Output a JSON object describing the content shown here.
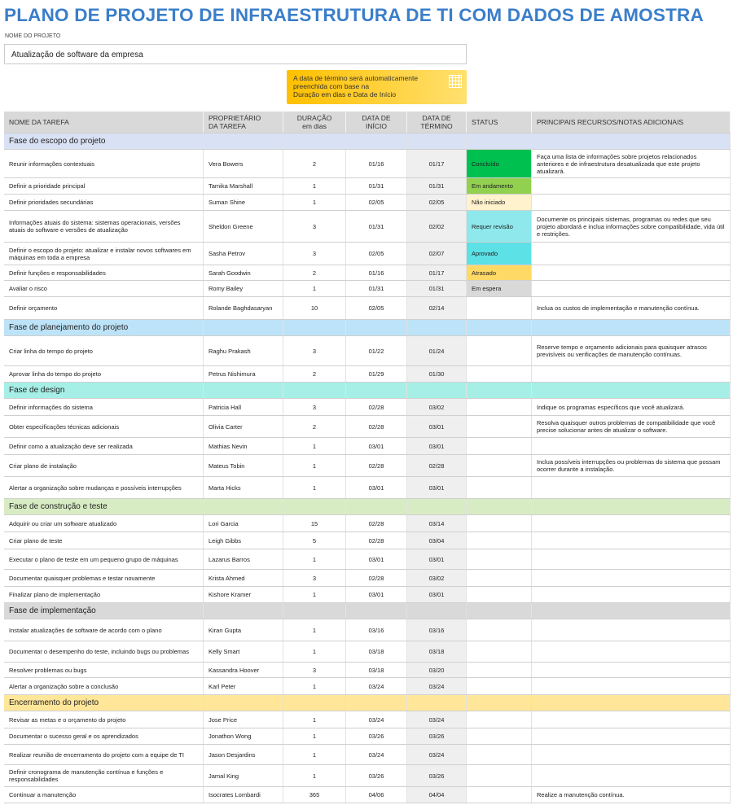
{
  "header": {
    "title": "PLANO DE PROJETO DE INFRAESTRUTURA DE TI COM DADOS DE AMOSTRA",
    "project_label": "NOME DO PROJETO",
    "project_name": "Atualização de software da empresa"
  },
  "note": {
    "lines": [
      "A data de término será automaticamente",
      "preenchida com base na",
      "Duração em dias e Data de Início"
    ]
  },
  "table": {
    "headers": [
      [
        "NOME DA TAREFA"
      ],
      [
        "PROPRIETÁRIO",
        "DA TAREFA"
      ],
      [
        "DURAÇÃO",
        "em dias"
      ],
      [
        "DATA DE",
        "INÍCIO"
      ],
      [
        "DATA DE",
        "TÉRMINO"
      ],
      [
        "STATUS"
      ],
      [
        "PRINCIPAIS RECURSOS/NOTAS ADICIONAIS"
      ]
    ],
    "phases": [
      {
        "name": "Fase do escopo do projeto",
        "color": "#d9e1f4",
        "rows": [
          {
            "task": "Reunir informações contextuais",
            "owner": "Vera Bowers",
            "duration": "2",
            "start": "01/16",
            "end": "01/17",
            "status": "Concluído",
            "status_color": "#00c050",
            "notes": "Faça uma lista de informações sobre projetos relacionados anteriores e de infraestrutura desatualizada que este projeto atualizará."
          },
          {
            "task": "Definir a prioridade principal",
            "owner": "Tamika Marshall",
            "duration": "1",
            "start": "01/31",
            "end": "01/31",
            "status": "Em andamento",
            "status_color": "#92d050"
          },
          {
            "task": "Definir prioridades secundárias",
            "owner": "Suman Shine",
            "duration": "1",
            "start": "02/05",
            "end": "02/05",
            "status": "Não iniciado",
            "status_color": "#fff2cc"
          },
          {
            "task": "Informações atuais do sistema: sistemas operacionais, versões atuais do software e versões de atualização",
            "owner": "Sheldon Greene",
            "duration": "3",
            "start": "01/31",
            "end": "02/02",
            "status": "Requer revisão",
            "status_color": "#8ee8ec",
            "notes": "Documente os principais sistemas, programas ou redes que seu projeto abordará e inclua informações sobre compatibilidade, vida útil e restrições."
          },
          {
            "task": "Definir o escopo do projeto: atualizar e instalar novos softwares em máquinas em toda a empresa",
            "owner": "Sasha Petrov",
            "duration": "3",
            "start": "02/05",
            "end": "02/07",
            "status": "Aprovado",
            "status_color": "#5ce1e6"
          },
          {
            "task": "Definir funções e responsabilidades",
            "owner": "Sarah Goodwin",
            "duration": "2",
            "start": "01/16",
            "end": "01/17",
            "status": "Atrasado",
            "status_color": "#ffd966"
          },
          {
            "task": "Avaliar o risco",
            "owner": "Romy Bailey",
            "duration": "1",
            "start": "01/31",
            "end": "01/31",
            "status": "Em espera",
            "status_color": "#d9d9d9"
          },
          {
            "task": "Definir orçamento",
            "owner": "Rolande Baghdasaryan",
            "duration": "10",
            "start": "02/05",
            "end": "02/14",
            "notes": "Inclua os custos de implementação e manutenção contínua."
          }
        ]
      },
      {
        "name": "Fase de planejamento do projeto",
        "color": "#bde3f8",
        "rows": [
          {
            "task": "Criar linha do tempo do projeto",
            "owner": "Raghu Prakash",
            "duration": "3",
            "start": "01/22",
            "end": "01/24",
            "notes": "Reserve tempo e orçamento adicionais para quaisquer atrasos previsíveis ou verificações de manutenção contínuas."
          },
          {
            "task": "Aprovar linha do tempo do projeto",
            "owner": "Petrus Nishimura",
            "duration": "2",
            "start": "01/29",
            "end": "01/30"
          }
        ]
      },
      {
        "name": "Fase de design",
        "color": "#a6efe6",
        "rows": [
          {
            "task": "Definir informações do sistema",
            "owner": "Patricia Hall",
            "duration": "3",
            "start": "02/28",
            "end": "03/02",
            "notes": "Indique os programas específicos que você atualizará."
          },
          {
            "task": "Obter especificações técnicas adicionais",
            "owner": "Olivia Carter",
            "duration": "2",
            "start": "02/28",
            "end": "03/01",
            "notes": "Resolva quaisquer outros problemas de compatibilidade que você precise solucionar antes de atualizar o software."
          },
          {
            "task": "Definir como a atualização deve ser realizada",
            "owner": "Mathias Nevin",
            "duration": "1",
            "start": "03/01",
            "end": "03/01"
          },
          {
            "task": "Criar plano de instalação",
            "owner": "Mateus Tobin",
            "duration": "1",
            "start": "02/28",
            "end": "02/28",
            "notes": "Inclua possíveis interrupções ou problemas do sistema que possam ocorrer durante a instalação."
          },
          {
            "task": "Alertar a organização sobre mudanças e possíveis interrupções",
            "owner": "Marta Hicks",
            "duration": "1",
            "start": "03/01",
            "end": "03/01"
          }
        ]
      },
      {
        "name": "Fase de construção e teste",
        "color": "#d8ecc4",
        "rows": [
          {
            "task": "Adquirir ou criar um software atualizado",
            "owner": "Lori Garcia",
            "duration": "15",
            "start": "02/28",
            "end": "03/14"
          },
          {
            "task": "Criar plano de teste",
            "owner": "Leigh Gibbs",
            "duration": "5",
            "start": "02/28",
            "end": "03/04"
          },
          {
            "task": "Executar o plano de teste em um pequeno grupo de máquinas",
            "owner": "Lazarus Barros",
            "duration": "1",
            "start": "03/01",
            "end": "03/01"
          },
          {
            "task": "Documentar quaisquer problemas e testar novamente",
            "owner": "Krista Ahmed",
            "duration": "3",
            "start": "02/28",
            "end": "03/02"
          },
          {
            "task": "Finalizar plano de implementação",
            "owner": "Kishore Kramer",
            "duration": "1",
            "start": "03/01",
            "end": "03/01"
          }
        ]
      },
      {
        "name": "Fase de implementação",
        "color": "#d9d9d9",
        "rows": [
          {
            "task": "Instalar atualizações de software de acordo com o plano",
            "owner": "Kiran Gupta",
            "duration": "1",
            "start": "03/16",
            "end": "03/16"
          },
          {
            "task": "Documentar o desempenho do teste, incluindo bugs ou problemas",
            "owner": "Kelly Smart",
            "duration": "1",
            "start": "03/18",
            "end": "03/18"
          },
          {
            "task": "Resolver problemas ou bugs",
            "owner": "Kassandra Hoover",
            "duration": "3",
            "start": "03/18",
            "end": "03/20"
          },
          {
            "task": "Alertar a organização sobre a conclusão",
            "owner": "Karl Peter",
            "duration": "1",
            "start": "03/24",
            "end": "03/24"
          }
        ]
      },
      {
        "name": "Encerramento do projeto",
        "color": "#ffe699",
        "rows": [
          {
            "task": "Revisar as metas e o orçamento do projeto",
            "owner": "Jose Price",
            "duration": "1",
            "start": "03/24",
            "end": "03/24"
          },
          {
            "task": "Documentar o sucesso geral e os aprendizados",
            "owner": "Jonathon Wong",
            "duration": "1",
            "start": "03/26",
            "end": "03/26"
          },
          {
            "task": "Realizar reunião de encerramento do projeto com a equipe de TI",
            "owner": "Jason Desjardins",
            "duration": "1",
            "start": "03/24",
            "end": "03/24"
          },
          {
            "task": "Definir cronograma de manutenção contínua e funções e responsabilidades",
            "owner": "Jamal King",
            "duration": "1",
            "start": "03/26",
            "end": "03/26"
          },
          {
            "task": "Continuar a manutenção",
            "owner": "Isocrates Lombardi",
            "duration": "365",
            "start": "04/06",
            "end": "04/04",
            "notes": "Realize a manutenção contínua."
          }
        ]
      }
    ]
  }
}
